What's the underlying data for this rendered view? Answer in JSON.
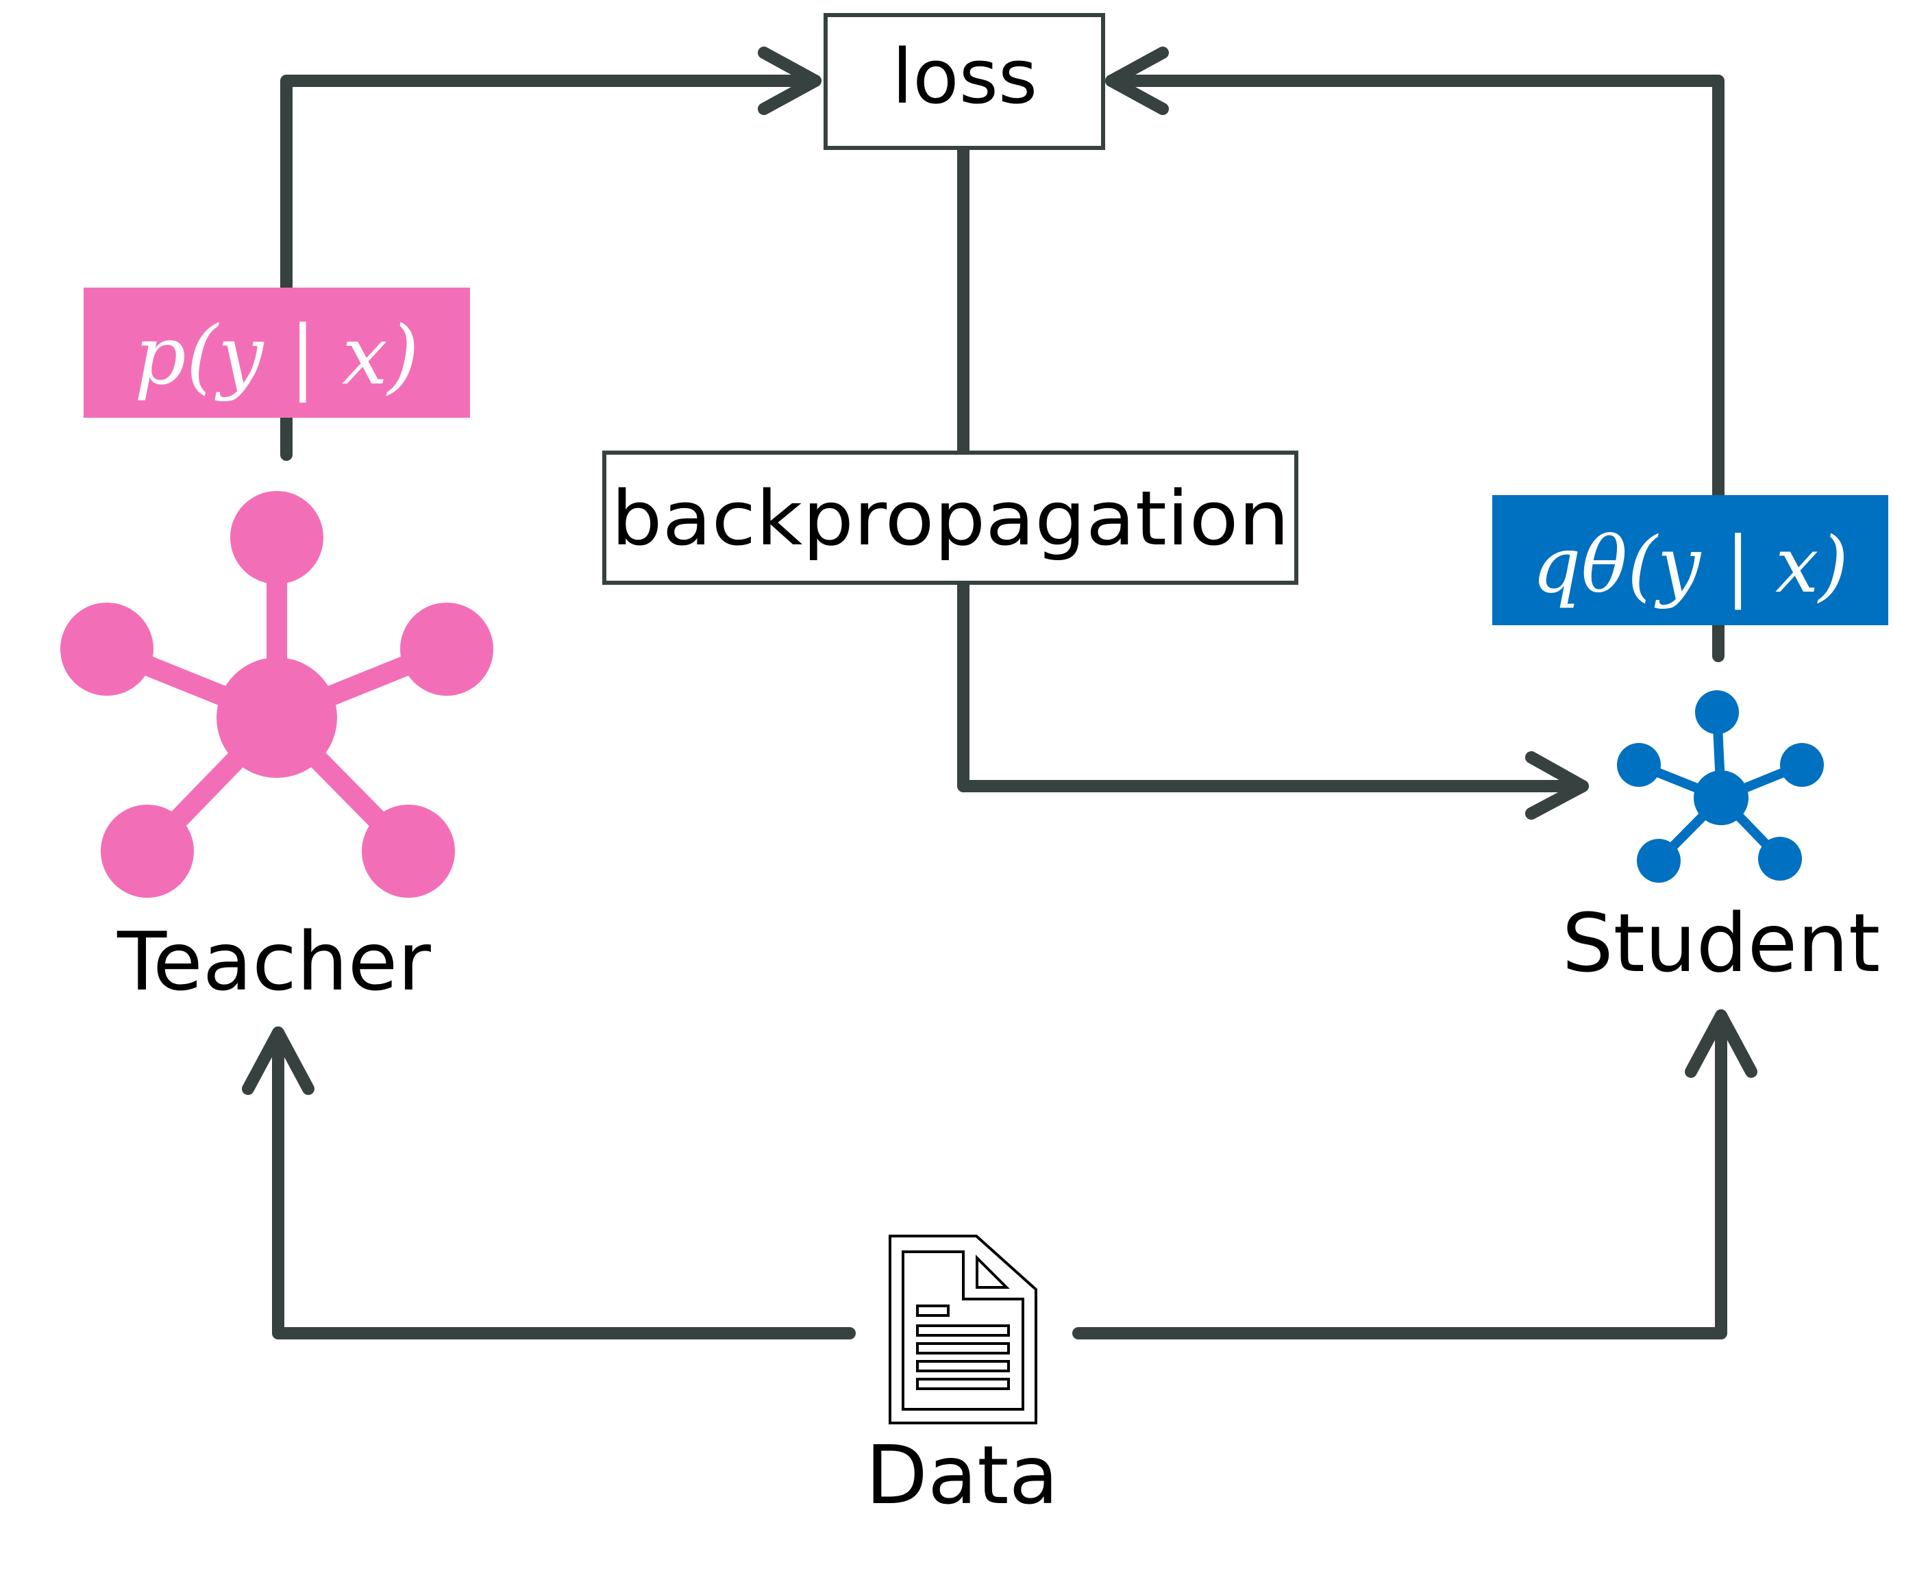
{
  "nodes": {
    "loss": {
      "label": "loss"
    },
    "backprop": {
      "label": "backpropagation"
    },
    "teacher": {
      "label": "Teacher",
      "output_label": "p(y | x)"
    },
    "student": {
      "label": "Student",
      "output_label": "qθ(y | x)"
    },
    "data": {
      "label": "Data"
    }
  },
  "colors": {
    "teacher": "#F26FB8",
    "student": "#0070C0",
    "arrow": "#374140",
    "text": "#000000"
  },
  "icons": {
    "teacher": "network-icon",
    "student": "network-icon",
    "data": "document-icon"
  }
}
